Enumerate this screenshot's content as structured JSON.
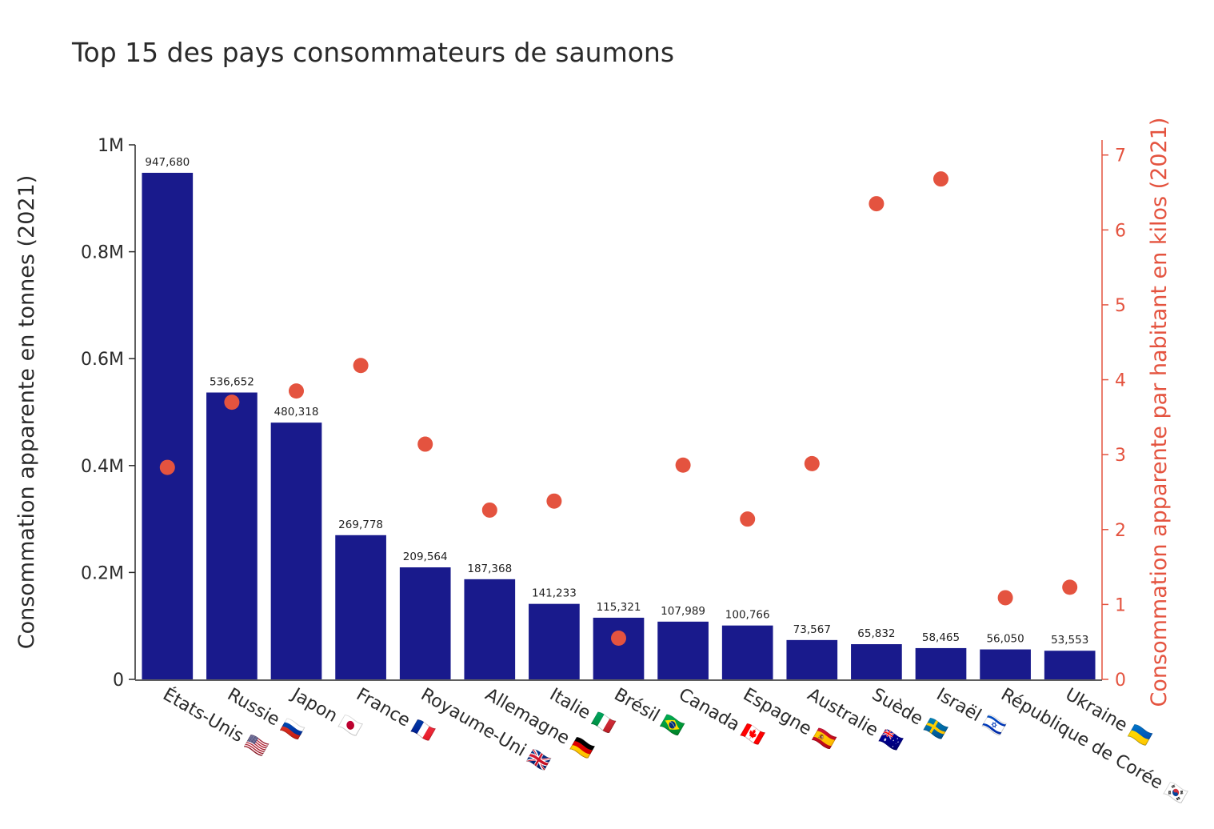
{
  "chart_data": {
    "type": "bar",
    "title": "Top 15 des pays consommateurs de saumons",
    "categories": [
      "États-Unis 🇺🇸",
      "Russie 🇷🇺",
      "Japon 🇯🇵",
      "France 🇫🇷",
      "Royaume-Uni 🇬🇧",
      "Allemagne 🇩🇪",
      "Italie 🇮🇹",
      "Brésil 🇧🇷",
      "Canada 🇨🇦",
      "Espagne 🇪🇸",
      "Australie 🇦🇺",
      "Suède 🇸🇪",
      "Israël 🇮🇱",
      "République de Corée 🇰🇷",
      "Ukraine 🇺🇦"
    ],
    "series": [
      {
        "type": "bar",
        "axis": "left",
        "color": "#191a8c",
        "values": [
          947680,
          536652,
          480318,
          269778,
          209564,
          187368,
          141233,
          115321,
          107989,
          100766,
          73567,
          65832,
          58465,
          56050,
          53553
        ],
        "labels": [
          "947,680",
          "536,652",
          "480,318",
          "269,778",
          "209,564",
          "187,368",
          "141,233",
          "115,321",
          "107,989",
          "100,766",
          "73,567",
          "65,832",
          "58,465",
          "56,050",
          "53,553"
        ]
      },
      {
        "type": "scatter",
        "axis": "right",
        "color": "#e4533f",
        "values": [
          2.83,
          3.7,
          3.85,
          4.19,
          3.14,
          2.26,
          2.38,
          0.55,
          2.86,
          2.14,
          2.88,
          6.35,
          6.68,
          1.09,
          1.23
        ]
      }
    ],
    "ylabel": "Consommation apparente en tonnes (2021)",
    "ylabel_right": "Consommation apparente par habitant en kilos (2021)",
    "ylim": [
      0,
      1000000
    ],
    "ylim_right": [
      0,
      7.2
    ],
    "yticks": [
      {
        "value": 0,
        "label": "0"
      },
      {
        "value": 200000,
        "label": "0.2M"
      },
      {
        "value": 400000,
        "label": "0.4M"
      },
      {
        "value": 600000,
        "label": "0.6M"
      },
      {
        "value": 800000,
        "label": "0.8M"
      },
      {
        "value": 1000000,
        "label": "1M"
      }
    ],
    "yticks_right": [
      {
        "value": 0,
        "label": "0"
      },
      {
        "value": 1,
        "label": "1"
      },
      {
        "value": 2,
        "label": "2"
      },
      {
        "value": 3,
        "label": "3"
      },
      {
        "value": 4,
        "label": "4"
      },
      {
        "value": 5,
        "label": "5"
      },
      {
        "value": 6,
        "label": "6"
      },
      {
        "value": 7,
        "label": "7"
      }
    ],
    "grid": false,
    "legend": "none"
  }
}
